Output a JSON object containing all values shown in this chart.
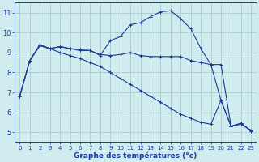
{
  "title": "Graphe des températures (°c)",
  "bg_color": "#d0ecee",
  "grid_color": "#aacccc",
  "line_color": "#1a3a9a",
  "xlim": [
    -0.5,
    23.5
  ],
  "ylim": [
    4.5,
    11.5
  ],
  "yticks": [
    5,
    6,
    7,
    8,
    9,
    10,
    11
  ],
  "xticks": [
    0,
    1,
    2,
    3,
    4,
    5,
    6,
    7,
    8,
    9,
    10,
    11,
    12,
    13,
    14,
    15,
    16,
    17,
    18,
    19,
    20,
    21,
    22,
    23
  ],
  "series1_x": [
    0,
    1,
    2,
    3,
    4,
    5,
    6,
    7,
    8,
    9,
    10,
    11,
    12,
    13,
    14,
    15,
    16,
    17,
    18,
    19,
    20,
    21,
    22,
    23
  ],
  "series1_y": [
    6.8,
    8.6,
    9.4,
    9.2,
    9.3,
    9.2,
    9.1,
    9.1,
    8.9,
    8.85,
    8.9,
    9.0,
    8.85,
    8.8,
    8.8,
    8.8,
    8.8,
    8.6,
    8.5,
    8.4,
    8.4,
    5.3,
    5.4,
    5.1
  ],
  "series2_x": [
    0,
    1,
    2,
    3,
    4,
    5,
    6,
    7,
    8,
    9,
    10,
    11,
    12,
    13,
    14,
    15,
    16,
    17,
    18,
    19,
    20,
    21,
    22,
    23
  ],
  "series2_y": [
    6.8,
    8.6,
    9.35,
    9.2,
    9.3,
    9.2,
    9.15,
    9.1,
    8.85,
    9.6,
    9.8,
    10.4,
    10.5,
    10.8,
    11.05,
    11.1,
    10.7,
    10.2,
    9.2,
    8.4,
    6.6,
    5.3,
    5.45,
    5.05
  ],
  "series3_x": [
    0,
    1,
    2,
    3,
    4,
    5,
    6,
    7,
    8,
    9,
    10,
    11,
    12,
    13,
    14,
    15,
    16,
    17,
    18,
    19,
    20,
    21,
    22,
    23
  ],
  "series3_y": [
    6.8,
    8.6,
    9.35,
    9.2,
    9.0,
    8.85,
    8.7,
    8.5,
    8.3,
    8.0,
    7.7,
    7.4,
    7.1,
    6.8,
    6.5,
    6.2,
    5.9,
    5.7,
    5.5,
    5.4,
    6.6,
    5.3,
    5.45,
    5.05
  ],
  "xlabel_fontsize": 6.5,
  "tick_fontsize_x": 5.0,
  "tick_fontsize_y": 6.0
}
